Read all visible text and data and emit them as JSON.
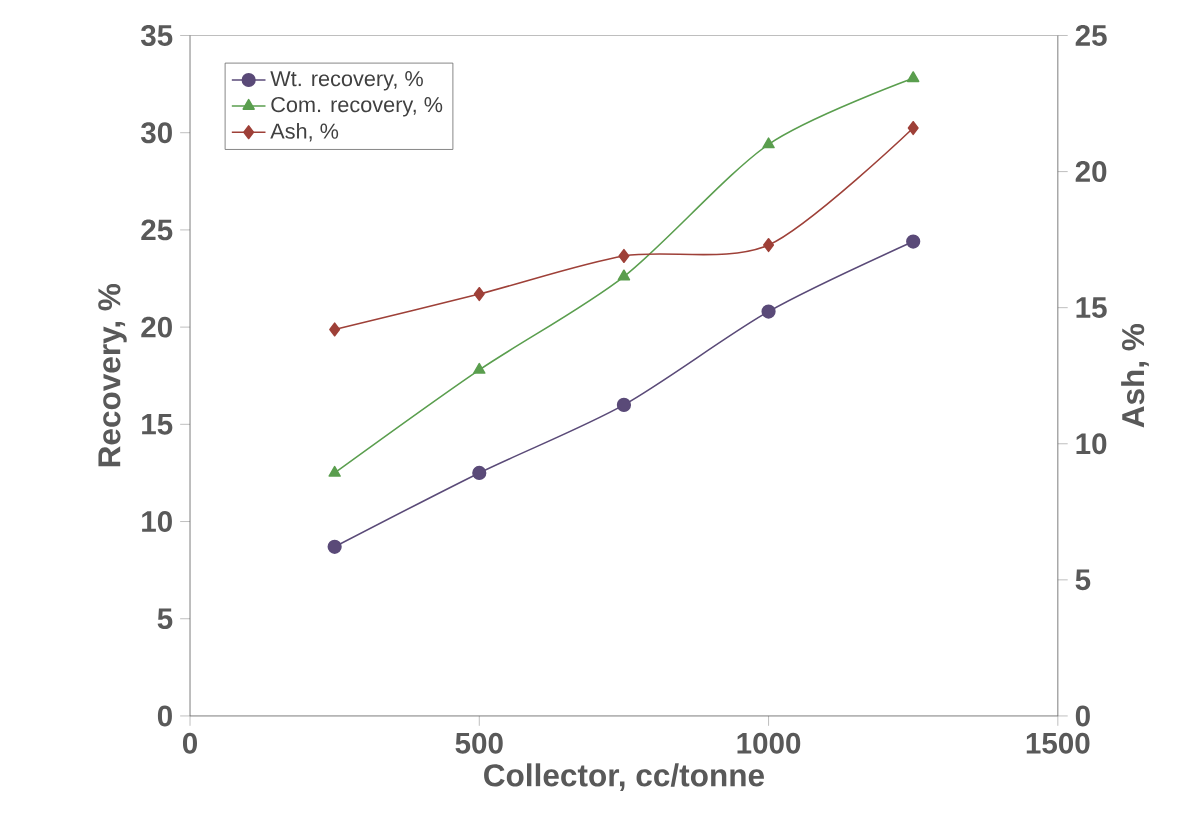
{
  "chart_data": {
    "type": "line",
    "xlabel": "Collector, cc/tonne",
    "ylabel": "Recovery, %",
    "y2label": "Ash, %",
    "x": [
      250,
      500,
      750,
      1000,
      1250
    ],
    "series": [
      {
        "name": "Wt. recovery, %",
        "color": "#5a4a78",
        "marker": "circle",
        "values": [
          8.7,
          12.5,
          16.0,
          20.8,
          24.4
        ]
      },
      {
        "name": "Com. recovery, %",
        "color": "#5a9e4e",
        "marker": "triangle",
        "values": [
          12.5,
          17.8,
          22.6,
          29.4,
          32.8
        ]
      },
      {
        "name": "Ash, %",
        "color": "#9e4038",
        "marker": "diamond",
        "axis": "y2",
        "values": [
          14.2,
          15.5,
          16.9,
          17.3,
          21.6
        ]
      }
    ],
    "xlim": [
      0,
      1500
    ],
    "xticks": [
      0,
      500,
      1000,
      1500
    ],
    "ylim": [
      0,
      35
    ],
    "yticks": [
      0,
      5,
      10,
      15,
      20,
      25,
      30,
      35
    ],
    "y2lim": [
      0,
      25
    ],
    "y2ticks": [
      0,
      5,
      10,
      15,
      20,
      25
    ],
    "legend": "top left",
    "grid": false
  }
}
